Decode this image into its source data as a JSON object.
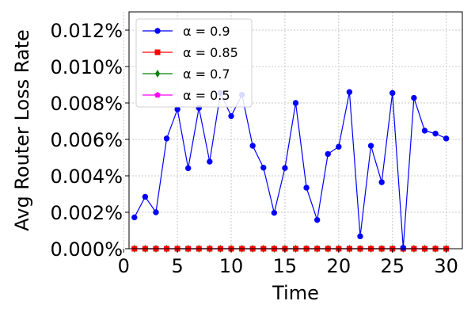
{
  "chart_data": {
    "type": "line",
    "title": "",
    "xlabel": "Time",
    "ylabel": "Avg Router Loss Rate",
    "xlim": [
      0.5,
      31.5
    ],
    "ylim": [
      0,
      0.013
    ],
    "x_ticks": [
      0,
      5,
      10,
      15,
      20,
      25,
      30
    ],
    "x_tick_labels": [
      "0",
      "5",
      "10",
      "15",
      "20",
      "25",
      "30"
    ],
    "y_ticks": [
      0.0,
      0.002,
      0.004,
      0.006,
      0.008,
      0.01,
      0.012
    ],
    "y_tick_labels": [
      "0.000%",
      "0.002%",
      "0.004%",
      "0.006%",
      "0.008%",
      "0.010%",
      "0.012%"
    ],
    "grid": true,
    "legend_position": "top-left",
    "x": [
      1,
      2,
      3,
      4,
      5,
      6,
      7,
      8,
      9,
      10,
      11,
      12,
      13,
      14,
      15,
      16,
      17,
      18,
      19,
      20,
      21,
      22,
      23,
      24,
      25,
      26,
      27,
      28,
      29,
      30
    ],
    "series": [
      {
        "name": "α = 0.9",
        "color": "#0000ff",
        "marker": "circle",
        "values": [
          0.00172,
          0.00285,
          0.002,
          0.00605,
          0.00765,
          0.00442,
          0.00773,
          0.00478,
          0.00855,
          0.00728,
          0.00845,
          0.00565,
          0.00445,
          0.00197,
          0.00443,
          0.008,
          0.00335,
          0.00158,
          0.0052,
          0.0056,
          0.0086,
          0.00068,
          0.00565,
          0.00365,
          0.00855,
          5e-05,
          0.00828,
          0.00648,
          0.00632,
          0.00605
        ]
      },
      {
        "name": "α = 0.85",
        "color": "#ff0000",
        "marker": "square",
        "values": [
          0,
          0,
          0,
          0,
          0,
          0,
          0,
          0,
          0,
          0,
          0,
          0,
          0,
          0,
          0,
          0,
          0,
          0,
          0,
          0,
          0,
          0,
          0,
          0,
          0,
          0,
          0,
          0,
          0,
          0
        ]
      },
      {
        "name": "α = 0.7",
        "color": "#008000",
        "marker": "diamond",
        "values": [
          0,
          0,
          0,
          0,
          0,
          0,
          0,
          0,
          0,
          0,
          0,
          0,
          0,
          0,
          0,
          0,
          0,
          0,
          0,
          0,
          0,
          0,
          0,
          0,
          0,
          0,
          0,
          0,
          0,
          0
        ]
      },
      {
        "name": "α = 0.5",
        "color": "#ff00ff",
        "marker": "pentagon",
        "values": [
          0,
          0,
          0,
          0,
          0,
          0,
          0,
          0,
          0,
          0,
          0,
          0,
          0,
          0,
          0,
          0,
          0,
          0,
          0,
          0,
          0,
          0,
          0,
          0,
          0,
          0,
          0,
          0,
          0,
          0
        ]
      }
    ]
  }
}
